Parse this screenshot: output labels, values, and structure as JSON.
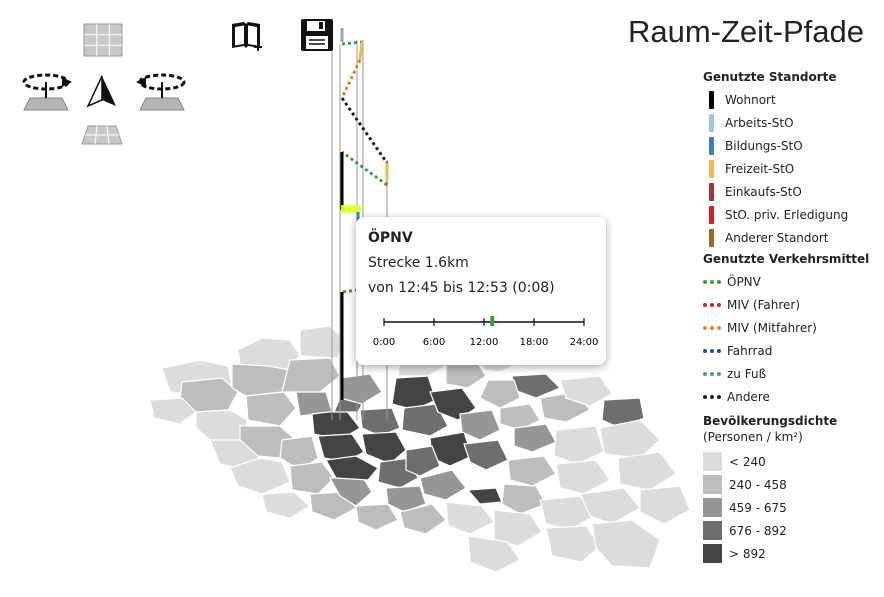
{
  "title": "Raum-Zeit-Pfade",
  "toolbar": {
    "icons": [
      "grid-top-icon",
      "rotate-left-icon",
      "north-arrow-icon",
      "rotate-right-icon",
      "grid-bottom-icon",
      "book-add-icon",
      "save-icon"
    ]
  },
  "popup": {
    "title": "ÖPNV",
    "distance": "Strecke 1.6km",
    "time_range": "von 12:45 bis 12:53 (0:08)",
    "timeline_ticks": [
      "0:00",
      "6:00",
      "12:00",
      "18:00",
      "24:00"
    ],
    "segment": {
      "start_hour": 12.75,
      "end_hour": 12.883
    },
    "segment_color": "#3a9e43"
  },
  "legend": {
    "locations": {
      "heading": "Genutzte Standorte",
      "items": [
        {
          "label": "Wohnort",
          "color": "#000000"
        },
        {
          "label": "Arbeits-StO",
          "color": "#9dc6e6"
        },
        {
          "label": "Bildungs-StO",
          "color": "#3d7fb8"
        },
        {
          "label": "Freizeit-StO",
          "color": "#f7b84b"
        },
        {
          "label": "Einkaufs-StO",
          "color": "#a3323a"
        },
        {
          "label": "StO. priv. Erledigung",
          "color": "#e31a1c"
        },
        {
          "label": "Anderer Standort",
          "color": "#a0671f"
        }
      ]
    },
    "transport": {
      "heading": "Genutzte Verkehrsmittel",
      "items": [
        {
          "label": "ÖPNV",
          "color": "#3a9e43"
        },
        {
          "label": "MIV (Fahrer)",
          "color": "#e31a1c"
        },
        {
          "label": "MIV (Mitfahrer)",
          "color": "#f07b26"
        },
        {
          "label": "Fahrrad",
          "color": "#1f4e9c"
        },
        {
          "label": "zu Fuß",
          "color": "#4a8fc9"
        },
        {
          "label": "Andere",
          "color": "#222222"
        }
      ]
    },
    "density": {
      "heading": "Bevölkerungsdichte",
      "subheading": "(Personen / km²)",
      "items": [
        {
          "label": "< 240",
          "color": "#dcdcdc"
        },
        {
          "label": "240 - 458",
          "color": "#bdbdbd"
        },
        {
          "label": "459 - 675",
          "color": "#969696"
        },
        {
          "label": "676 - 892",
          "color": "#6e6e6e"
        },
        {
          "label": "> 892",
          "color": "#444444"
        }
      ]
    }
  }
}
